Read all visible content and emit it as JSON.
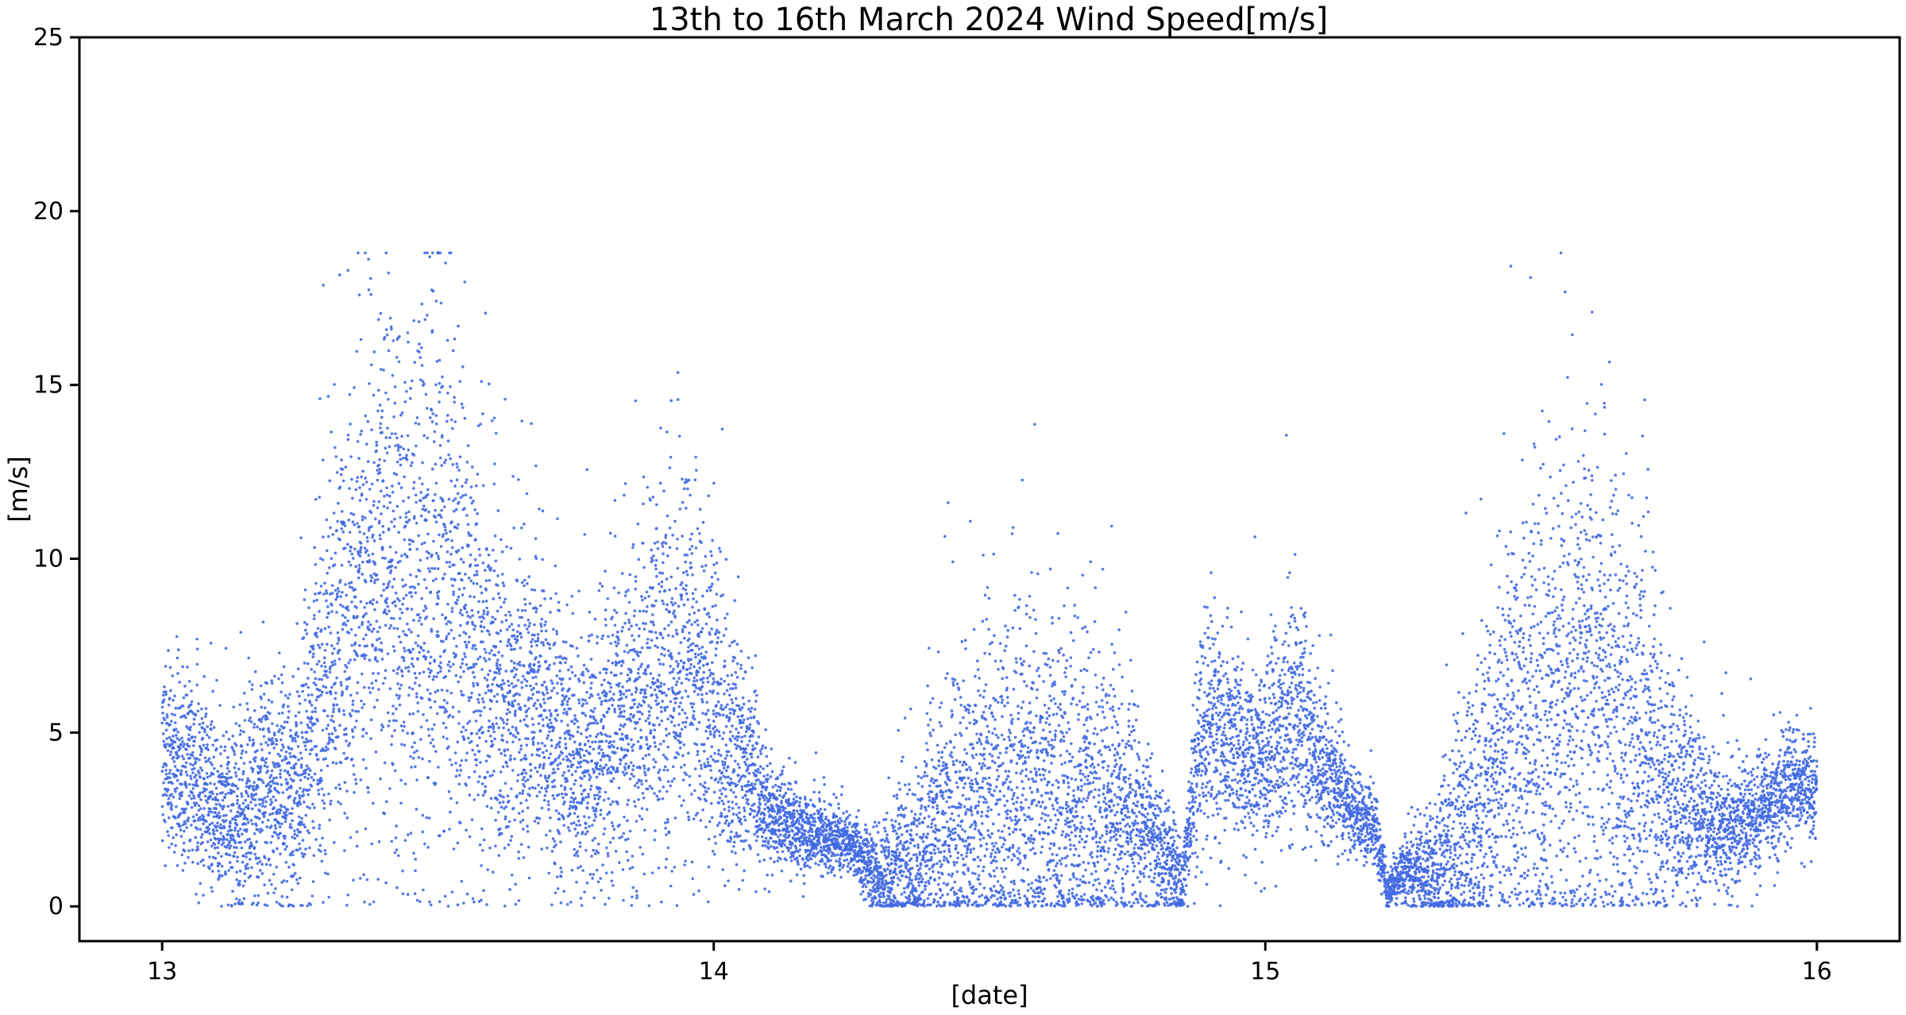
{
  "chart_data": {
    "type": "scatter",
    "title": "13th to 16th March 2024 Wind Speed[m/s]",
    "xlabel": "[date]",
    "ylabel": "[m/s]",
    "x_unit": "day of March 2024",
    "xlim": [
      12.85,
      16.15
    ],
    "ylim": [
      -1,
      25
    ],
    "x_ticks": [
      13,
      14,
      15,
      16
    ],
    "x_tick_labels": [
      "13",
      "14",
      "15",
      "16"
    ],
    "y_ticks": [
      0,
      5,
      10,
      15,
      20,
      25
    ],
    "y_tick_labels": [
      "0",
      "5",
      "10",
      "15",
      "20",
      "25"
    ],
    "grid": false,
    "legend": "none",
    "marker_color": "#4169e1",
    "series": [
      {
        "values_note": "dense 1-second-style samples; represented by a reconstructed envelope profile",
        "x": [
          13.0,
          13.02,
          13.05,
          13.08,
          13.1,
          13.15,
          13.2,
          13.25,
          13.3,
          13.35,
          13.4,
          13.45,
          13.5,
          13.55,
          13.6,
          13.65,
          13.7,
          13.75,
          13.8,
          13.85,
          13.9,
          13.95,
          14.0,
          14.05,
          14.1,
          14.15,
          14.2,
          14.25,
          14.3,
          14.35,
          14.4,
          14.45,
          14.5,
          14.55,
          14.6,
          14.65,
          14.7,
          14.75,
          14.8,
          14.85,
          14.88,
          14.9,
          14.95,
          15.0,
          15.05,
          15.1,
          15.15,
          15.2,
          15.22,
          15.25,
          15.3,
          15.35,
          15.4,
          15.45,
          15.5,
          15.55,
          15.6,
          15.65,
          15.7,
          15.75,
          15.8,
          15.85,
          15.9,
          15.95,
          16.0
        ],
        "y_center": [
          4.5,
          4.2,
          3.8,
          3.0,
          2.5,
          2.8,
          3.2,
          4.0,
          6.5,
          8.5,
          9.5,
          8.8,
          9.2,
          8.0,
          6.5,
          5.8,
          5.2,
          4.0,
          4.5,
          5.5,
          6.5,
          6.8,
          5.8,
          4.2,
          2.8,
          2.2,
          2.0,
          1.8,
          0.8,
          1.2,
          2.0,
          2.6,
          3.0,
          3.2,
          3.0,
          2.8,
          2.6,
          2.8,
          1.8,
          0.6,
          4.5,
          5.2,
          4.6,
          4.2,
          5.5,
          4.2,
          2.8,
          2.2,
          0.4,
          1.0,
          1.0,
          1.8,
          3.2,
          4.5,
          5.2,
          5.8,
          6.2,
          5.5,
          4.0,
          3.0,
          2.5,
          2.2,
          2.8,
          3.5,
          3.2
        ],
        "y_spread": [
          1.6,
          1.4,
          1.4,
          1.3,
          1.2,
          1.4,
          1.5,
          1.8,
          2.8,
          3.4,
          3.8,
          4.0,
          4.2,
          3.6,
          2.6,
          2.4,
          2.2,
          1.8,
          2.0,
          2.4,
          2.8,
          2.8,
          2.4,
          1.6,
          0.8,
          0.6,
          0.5,
          0.4,
          0.6,
          1.2,
          1.8,
          2.2,
          2.6,
          2.8,
          2.6,
          2.4,
          2.2,
          1.6,
          1.2,
          0.6,
          1.4,
          1.6,
          1.2,
          1.4,
          1.6,
          1.2,
          0.7,
          0.5,
          0.3,
          0.4,
          0.8,
          1.6,
          2.6,
          3.2,
          3.6,
          3.8,
          4.0,
          3.6,
          2.6,
          1.6,
          1.0,
          0.9,
          0.8,
          0.8,
          0.8
        ],
        "y_max": 18.8
      }
    ]
  }
}
